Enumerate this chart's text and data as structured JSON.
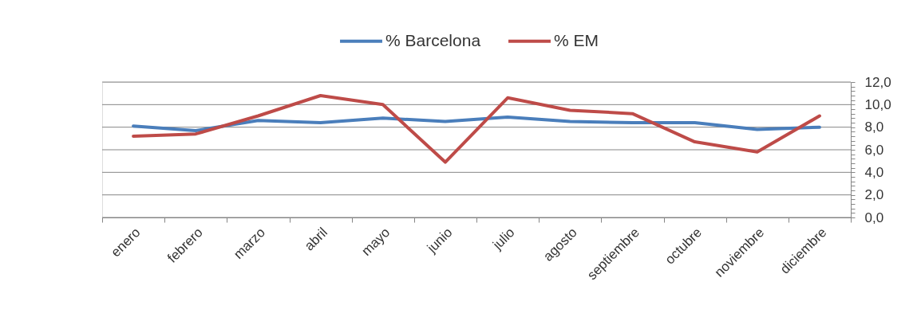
{
  "chart_data": {
    "type": "line",
    "categories": [
      "enero",
      "febrero",
      "marzo",
      "abril",
      "mayo",
      "junio",
      "julio",
      "agosto",
      "septiembre",
      "octubre",
      "noviembre",
      "diciembre"
    ],
    "series": [
      {
        "name": "% Barcelona",
        "color": "#4a7ebb",
        "values": [
          8.1,
          7.7,
          8.6,
          8.4,
          8.8,
          8.5,
          8.9,
          8.5,
          8.4,
          8.4,
          7.8,
          8.0
        ]
      },
      {
        "name": "% EM",
        "color": "#be4b48",
        "values": [
          7.2,
          7.4,
          9.0,
          10.8,
          10.0,
          4.9,
          10.6,
          9.5,
          9.2,
          6.7,
          5.8,
          9.0
        ]
      }
    ],
    "ylim": [
      0,
      12
    ],
    "yticks": [
      {
        "value": 0,
        "label": "0,0"
      },
      {
        "value": 0.4,
        "label": null
      },
      {
        "value": 0.8,
        "label": null
      },
      {
        "value": 1.2,
        "label": null
      },
      {
        "value": 1.6,
        "label": null
      },
      {
        "value": 2,
        "label": "2,0"
      },
      {
        "value": 2.4,
        "label": null
      },
      {
        "value": 2.8,
        "label": null
      },
      {
        "value": 3.2,
        "label": null
      },
      {
        "value": 3.6,
        "label": null
      },
      {
        "value": 4,
        "label": "4,0"
      },
      {
        "value": 4.4,
        "label": null
      },
      {
        "value": 4.8,
        "label": null
      },
      {
        "value": 5.2,
        "label": null
      },
      {
        "value": 5.6,
        "label": null
      },
      {
        "value": 6,
        "label": "6,0"
      },
      {
        "value": 6.4,
        "label": null
      },
      {
        "value": 6.8,
        "label": null
      },
      {
        "value": 7.2,
        "label": null
      },
      {
        "value": 7.6,
        "label": null
      },
      {
        "value": 8,
        "label": "8,0"
      },
      {
        "value": 8.4,
        "label": null
      },
      {
        "value": 8.8,
        "label": null
      },
      {
        "value": 9.2,
        "label": null
      },
      {
        "value": 9.6,
        "label": null
      },
      {
        "value": 10,
        "label": "10,0"
      },
      {
        "value": 10.4,
        "label": null
      },
      {
        "value": 10.8,
        "label": null
      },
      {
        "value": 11.2,
        "label": null
      },
      {
        "value": 11.6,
        "label": null
      },
      {
        "value": 12,
        "label": "12,0"
      }
    ],
    "grid": "y",
    "legend": "top",
    "marker": "none",
    "line_style": "solid"
  }
}
